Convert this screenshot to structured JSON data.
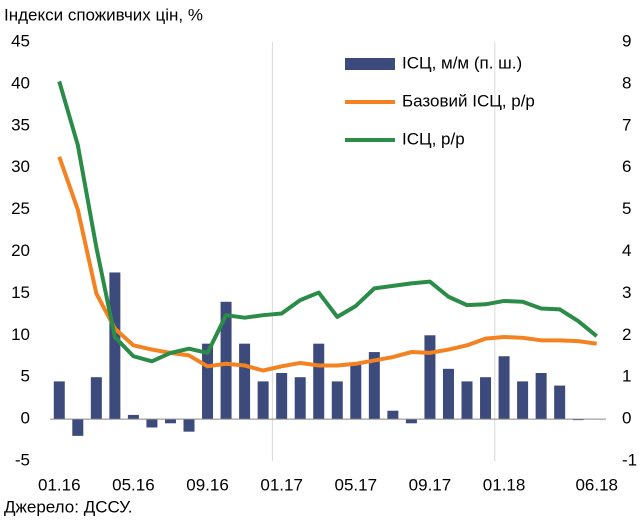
{
  "chart_data": {
    "type": "bar_line",
    "title": "Індекси споживчих цін, %",
    "source": "Джерело: ДССУ.",
    "categories": [
      "01.16",
      null,
      null,
      null,
      "05.16",
      null,
      null,
      null,
      "09.16",
      null,
      null,
      null,
      "01.17",
      null,
      null,
      null,
      "05.17",
      null,
      null,
      null,
      "09.17",
      null,
      null,
      null,
      "01.18",
      null,
      null,
      null,
      null,
      "06.18"
    ],
    "series": [
      {
        "name": "ІСЦ, м/м (п. ш.)",
        "type": "bar",
        "axis": "y2",
        "color": "#3d4b7c",
        "values": [
          0.9,
          -0.4,
          1.0,
          3.5,
          0.1,
          -0.2,
          -0.1,
          -0.3,
          1.8,
          2.8,
          1.8,
          0.9,
          1.1,
          1.0,
          1.8,
          0.9,
          1.3,
          1.6,
          0.2,
          -0.1,
          2.0,
          1.2,
          0.9,
          1.0,
          1.5,
          0.9,
          1.1,
          0.8,
          0.0,
          null
        ]
      },
      {
        "name": "Базовий ІСЦ, р/р",
        "type": "line",
        "color": "#f58220",
        "values": [
          31.3,
          25.0,
          15.0,
          10.8,
          8.8,
          8.3,
          7.9,
          7.6,
          6.3,
          6.6,
          6.4,
          5.8,
          6.3,
          6.7,
          6.4,
          6.4,
          6.6,
          7.0,
          7.4,
          8.0,
          7.9,
          8.3,
          8.8,
          9.6,
          9.8,
          9.7,
          9.4,
          9.4,
          9.3,
          9.0
        ]
      },
      {
        "name": "ІСЦ, р/р",
        "type": "line",
        "color": "#2a8c47",
        "values": [
          40.3,
          32.7,
          20.5,
          9.8,
          7.5,
          6.9,
          7.9,
          8.4,
          7.9,
          12.4,
          12.1,
          12.4,
          12.6,
          14.2,
          15.1,
          12.2,
          13.5,
          15.6,
          15.9,
          16.2,
          16.4,
          14.6,
          13.6,
          13.7,
          14.1,
          14.0,
          13.2,
          13.1,
          11.7,
          9.9
        ]
      }
    ],
    "ylim": [
      -5,
      45
    ],
    "yticks": [
      -5,
      0,
      5,
      10,
      15,
      20,
      25,
      30,
      35,
      40,
      45
    ],
    "y2lim": [
      -1,
      9
    ],
    "y2ticks": [
      -1,
      0,
      1,
      2,
      3,
      4,
      5,
      6,
      7,
      8,
      9
    ],
    "legend": "upper right"
  }
}
